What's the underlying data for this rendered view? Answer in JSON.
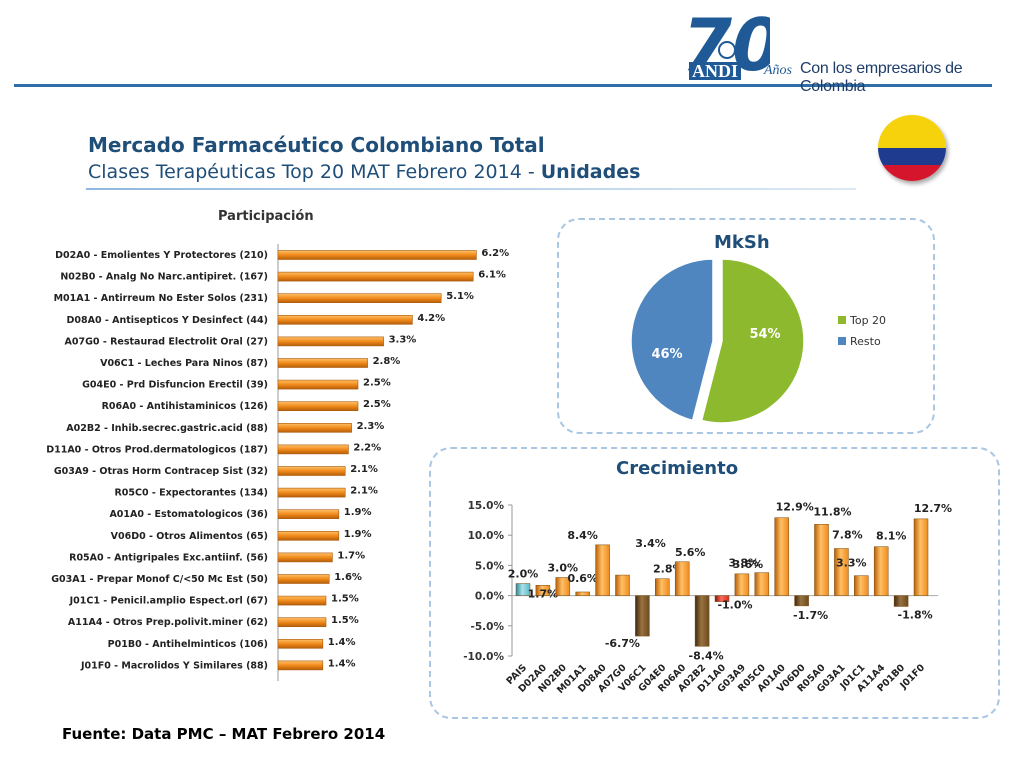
{
  "header": {
    "logo_number": "70",
    "logo_brand": "ANDI",
    "logo_anos": "Años",
    "tagline": "Con los empresarios de Colombia"
  },
  "title": {
    "line1": "Mercado Farmacéutico Colombiano Total",
    "line2_prefix": "Clases Terapéuticas Top 20 MAT Febrero 2014 - ",
    "line2_bold": "Unidades"
  },
  "footer": {
    "source": "Fuente: Data PMC – MAT Febrero 2014"
  },
  "colors": {
    "bar_orange": "#f08a1c",
    "pie_green": "#8db92e",
    "pie_blue": "#4f86c0",
    "negative_brown": "#6b4a1e",
    "pais_teal": "#5fb8c8",
    "title_blue": "#1f4e79"
  },
  "chart_data": [
    {
      "type": "bar",
      "orientation": "horizontal",
      "title": "Participación",
      "categories": [
        "D02A0 - Emolientes Y Protectores (210)",
        "N02B0 - Analg No Narc.antipiret. (167)",
        "M01A1 - Antirreum No Ester Solos (231)",
        "D08A0 - Antisepticos Y Desinfect (44)",
        "A07G0 - Restaurad Electrolit Oral (27)",
        "V06C1 - Leches Para Ninos (87)",
        "G04E0 - Prd Disfuncion Erectil (39)",
        "R06A0 - Antihistaminicos (126)",
        "A02B2 - Inhib.secrec.gastric.acid (88)",
        "D11A0 - Otros Prod.dermatologicos (187)",
        "G03A9 - Otras Horm Contracep Sist (32)",
        "R05C0 - Expectorantes (134)",
        "A01A0 - Estomatologicos (36)",
        "V06D0 - Otros Alimentos (65)",
        "R05A0 - Antigripales Exc.antiinf. (56)",
        "G03A1 - Prepar Monof C/<50 Mc Est (50)",
        "J01C1 - Penicil.amplio Espect.orl (67)",
        "A11A4 - Otros Prep.polivit.miner (62)",
        "P01B0 - Antihelminticos (106)",
        "J01F0 - Macrolidos Y Similares (88)"
      ],
      "values": [
        6.2,
        6.1,
        5.1,
        4.2,
        3.3,
        2.8,
        2.5,
        2.5,
        2.3,
        2.2,
        2.1,
        2.1,
        1.9,
        1.9,
        1.7,
        1.6,
        1.5,
        1.5,
        1.4,
        1.4
      ],
      "labels": [
        "6.2%",
        "6.1%",
        "5.1%",
        "4.2%",
        "3.3%",
        "2.8%",
        "2.5%",
        "2.5%",
        "2.3%",
        "2.2%",
        "2.1%",
        "2.1%",
        "1.9%",
        "1.9%",
        "1.7%",
        "1.6%",
        "1.5%",
        "1.5%",
        "1.4%",
        "1.4%"
      ]
    },
    {
      "type": "pie",
      "title": "MkSh",
      "slices": [
        {
          "name": "Top 20",
          "value": 54,
          "label": "54%",
          "color": "#8db92e"
        },
        {
          "name": "Resto",
          "value": 46,
          "label": "46%",
          "color": "#4f86c0"
        }
      ],
      "legend": "right"
    },
    {
      "type": "bar",
      "title": "Crecimiento",
      "categories": [
        "PAIS",
        "D02A0",
        "N02B0",
        "M01A1",
        "D08A0",
        "A07G0",
        "V06C1",
        "G04E0",
        "R06A0",
        "A02B2",
        "D11A0",
        "G03A9",
        "R05C0",
        "A01A0",
        "V06D0",
        "R05A0",
        "G03A1",
        "J01C1",
        "A11A4",
        "P01B0",
        "J01F0"
      ],
      "values": [
        2.0,
        1.7,
        3.0,
        0.6,
        8.4,
        3.4,
        -6.7,
        2.8,
        5.6,
        -8.4,
        -1.0,
        3.6,
        3.8,
        12.9,
        -1.7,
        11.8,
        7.8,
        3.3,
        8.1,
        -1.8,
        12.7
      ],
      "labels": [
        "2.0%",
        "1.7%",
        "3.0%",
        "0.6%",
        "8.4%",
        "3.4%",
        "-6.7%",
        "2.8%",
        "5.6%",
        "-8.4%",
        "-1.0%",
        "3.6%",
        "3.8%",
        "12.9%",
        "-1.7%",
        "11.8%",
        "7.8%",
        "3.3%",
        "8.1%",
        "-1.8%",
        "12.7%"
      ],
      "yticks": [
        "15.0%",
        "10.0%",
        "5.0%",
        "0.0%",
        "-5.0%",
        "-10.0%"
      ],
      "ylim": [
        -10,
        15
      ]
    }
  ]
}
